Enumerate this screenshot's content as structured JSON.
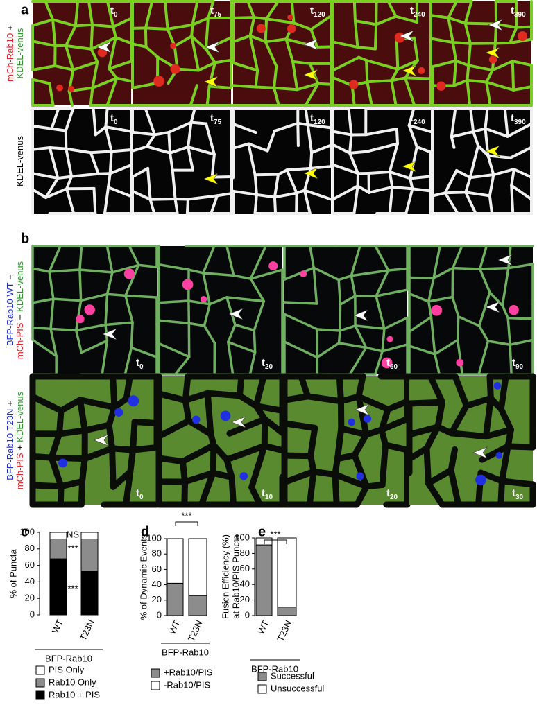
{
  "figure_panels": [
    {
      "label": "a",
      "rows": [
        {
          "label_lines": [
            [
              {
                "text": "mCh-Rab10",
                "color": "#e3202a"
              },
              {
                "text": "+",
                "color": "#000000"
              }
            ],
            [
              {
                "text": "KDEL-venus",
                "color": "#2a9a2a"
              }
            ]
          ],
          "times": [
            {
              "base": "t",
              "sub": "0"
            },
            {
              "base": "t",
              "sub": "75"
            },
            {
              "base": "t",
              "sub": "120"
            },
            {
              "base": "t",
              "sub": "240"
            },
            {
              "base": "t",
              "sub": "390"
            }
          ]
        },
        {
          "label_lines": [
            [
              {
                "text": "KDEL-venus",
                "color": "#000000"
              }
            ]
          ],
          "times": [
            {
              "base": "t",
              "sub": "0"
            },
            {
              "base": "t",
              "sub": "75"
            },
            {
              "base": "t",
              "sub": "120"
            },
            {
              "base": "t",
              "sub": "240"
            },
            {
              "base": "t",
              "sub": "390"
            }
          ]
        }
      ]
    },
    {
      "label": "b",
      "rows": [
        {
          "label_lines": [
            [
              {
                "text": "BFP-Rab10 WT",
                "color": "#2030d0"
              },
              {
                "text": "+",
                "color": "#000000"
              }
            ],
            [
              {
                "text": "mCh-PIS",
                "color": "#e3202a"
              },
              {
                "text": "+",
                "color": "#000000"
              },
              {
                "text": "KDEL-venus",
                "color": "#2a9a2a"
              }
            ]
          ],
          "times": [
            {
              "base": "t",
              "sub": "0"
            },
            {
              "base": "t",
              "sub": "20"
            },
            {
              "base": "t",
              "sub": "60"
            },
            {
              "base": "t",
              "sub": "90"
            }
          ]
        },
        {
          "label_lines": [
            [
              {
                "text": "BFP-Rab10 T23N",
                "color": "#2030d0"
              },
              {
                "text": "+",
                "color": "#000000"
              }
            ],
            [
              {
                "text": "mCh-PIS",
                "color": "#e3202a"
              },
              {
                "text": "+",
                "color": "#000000"
              },
              {
                "text": "KDEL-venus",
                "color": "#2a9a2a"
              }
            ]
          ],
          "times": [
            {
              "base": "t",
              "sub": "0"
            },
            {
              "base": "t",
              "sub": "10"
            },
            {
              "base": "t",
              "sub": "20"
            },
            {
              "base": "t",
              "sub": "30"
            }
          ]
        }
      ]
    }
  ],
  "chart_data": [
    {
      "type": "bar",
      "stacked": true,
      "panel_label": "c",
      "y_label": [
        "% of Puncta"
      ],
      "categories": [
        "WT",
        "T23N"
      ],
      "group_label": "BFP-Rab10",
      "series": [
        {
          "name": "Rab10 + PIS",
          "color": "#000000",
          "values": [
            68,
            53
          ]
        },
        {
          "name": "Rab10 Only",
          "color": "#8c8c8c",
          "values": [
            24,
            39
          ]
        },
        {
          "name": "PIS Only",
          "color": "#ffffff",
          "values": [
            8,
            8
          ]
        }
      ],
      "ylim": [
        0,
        100
      ],
      "yticks": [
        0,
        20,
        40,
        60,
        80,
        100
      ],
      "legend_reversed": true,
      "annotations": [
        {
          "text": "NS"
        },
        {
          "text": "***"
        },
        {
          "text": "***"
        }
      ]
    },
    {
      "type": "bar",
      "stacked": true,
      "panel_label": "d",
      "y_label": [
        "% of Dynamic Events"
      ],
      "categories": [
        "WT",
        "T23N"
      ],
      "group_label": "BFP-Rab10",
      "series": [
        {
          "name": "+Rab10/PIS",
          "color": "#8c8c8c",
          "values": [
            42,
            26
          ]
        },
        {
          "name": "-Rab10/PIS",
          "color": "#ffffff",
          "values": [
            58,
            74
          ]
        }
      ],
      "ylim": [
        0,
        100
      ],
      "yticks": [
        0,
        20,
        40,
        60,
        80,
        100
      ],
      "legend_reversed": false,
      "annotations": [
        {
          "text": "***"
        }
      ]
    },
    {
      "type": "bar",
      "stacked": true,
      "panel_label": "e",
      "y_label": [
        "Fusion Efficiency (%)",
        "at Rab10/PIS Puncta"
      ],
      "categories": [
        "WT",
        "T23N"
      ],
      "group_label": "BFP-Rab10",
      "series": [
        {
          "name": "Successful",
          "color": "#8c8c8c",
          "values": [
            91,
            11
          ]
        },
        {
          "name": "Unsuccessful",
          "color": "#ffffff",
          "values": [
            9,
            89
          ]
        }
      ],
      "ylim": [
        0,
        100
      ],
      "yticks": [
        0,
        20,
        40,
        60,
        80,
        100
      ],
      "legend_reversed": false,
      "annotations": [
        {
          "text": "***"
        }
      ]
    }
  ]
}
